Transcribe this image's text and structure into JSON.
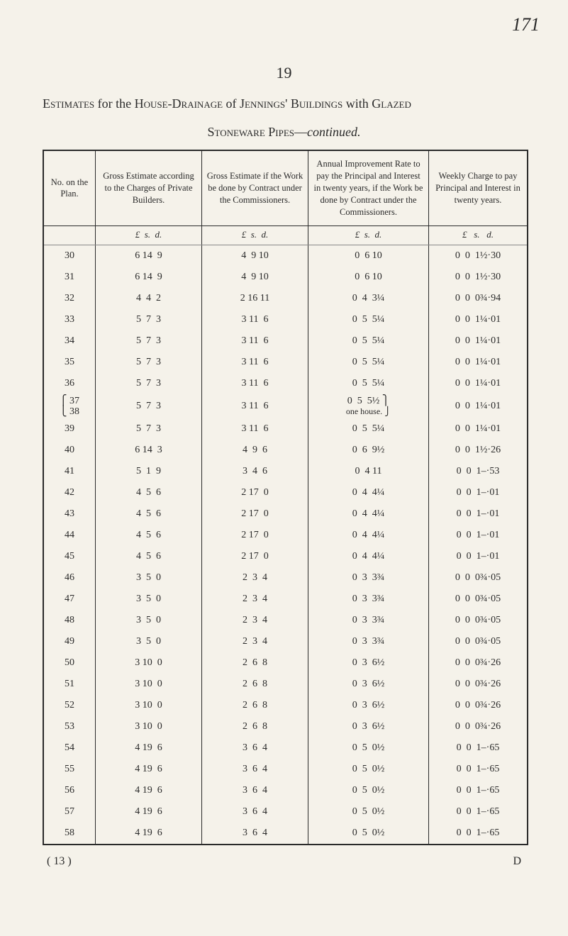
{
  "page": {
    "marginal": "171",
    "number": "19",
    "heading_prefix": "Estimates",
    "heading_mid": " for the ",
    "heading_sc1": "House-Drainage",
    "heading_mid2": " of ",
    "heading_sc2": "Jennings' Buildings",
    "heading_tail": " with ",
    "heading_sc3": "Glazed",
    "subhead_sc": "Stoneware Pipes",
    "subhead_dash": "—",
    "subhead_em": "continued."
  },
  "columns": {
    "c1": "No. on the Plan.",
    "c2": "Gross Estimate according to the Charges of Private Builders.",
    "c3": "Gross Estimate if the Work be done by Contract under the Commissioners.",
    "c4": "Annual Improvement Rate to pay the Principal and Interest in twenty years, if the Work be done by Contract under the Commissioners.",
    "c5": "Weekly Charge to pay Principal and Interest in twenty years."
  },
  "unit_labels": {
    "lsd": "£  s.  d.",
    "lsd2": "£   s.   d."
  },
  "rows": [
    {
      "plan": "30",
      "gross": "6 14  9",
      "contract": "4  9 10",
      "annual": "0  6 10",
      "weekly": "0  0  1½·30"
    },
    {
      "plan": "31",
      "gross": "6 14  9",
      "contract": "4  9 10",
      "annual": "0  6 10",
      "weekly": "0  0  1½·30"
    },
    {
      "plan": "32",
      "gross": "4  4  2",
      "contract": "2 16 11",
      "annual": "0  4  3¼",
      "weekly": "0  0  0¾·94"
    },
    {
      "plan": "33",
      "gross": "5  7  3",
      "contract": "3 11  6",
      "annual": "0  5  5¼",
      "weekly": "0  0  1¼·01"
    },
    {
      "plan": "34",
      "gross": "5  7  3",
      "contract": "3 11  6",
      "annual": "0  5  5¼",
      "weekly": "0  0  1¼·01"
    },
    {
      "plan": "35",
      "gross": "5  7  3",
      "contract": "3 11  6",
      "annual": "0  5  5¼",
      "weekly": "0  0  1¼·01"
    },
    {
      "plan": "36",
      "gross": "5  7  3",
      "contract": "3 11  6",
      "annual": "0  5  5¼",
      "weekly": "0  0  1¼·01"
    },
    {
      "plan": "37/38",
      "plan_a": "37",
      "plan_b": "38",
      "gross": "5  7  3",
      "contract": "3 11  6",
      "annual_line1": "0  5  5½",
      "annual_line2": "one house.",
      "weekly": "0  0  1¼·01",
      "double": true
    },
    {
      "plan": "39",
      "gross": "5  7  3",
      "contract": "3 11  6",
      "annual": "0  5  5¼",
      "weekly": "0  0  1¼·01"
    },
    {
      "plan": "40",
      "gross": "6 14  3",
      "contract": "4  9  6",
      "annual": "0  6  9½",
      "weekly": "0  0  1½·26"
    },
    {
      "plan": "41",
      "gross": "5  1  9",
      "contract": "3  4  6",
      "annual": "0  4 11",
      "weekly": "0  0  1–·53"
    },
    {
      "plan": "42",
      "gross": "4  5  6",
      "contract": "2 17  0",
      "annual": "0  4  4¼",
      "weekly": "0  0  1–·01"
    },
    {
      "plan": "43",
      "gross": "4  5  6",
      "contract": "2 17  0",
      "annual": "0  4  4¼",
      "weekly": "0  0  1–·01"
    },
    {
      "plan": "44",
      "gross": "4  5  6",
      "contract": "2 17  0",
      "annual": "0  4  4¼",
      "weekly": "0  0  1–·01"
    },
    {
      "plan": "45",
      "gross": "4  5  6",
      "contract": "2 17  0",
      "annual": "0  4  4¼",
      "weekly": "0  0  1–·01"
    },
    {
      "plan": "46",
      "gross": "3  5  0",
      "contract": "2  3  4",
      "annual": "0  3  3¾",
      "weekly": "0  0  0¾·05"
    },
    {
      "plan": "47",
      "gross": "3  5  0",
      "contract": "2  3  4",
      "annual": "0  3  3¾",
      "weekly": "0  0  0¾·05"
    },
    {
      "plan": "48",
      "gross": "3  5  0",
      "contract": "2  3  4",
      "annual": "0  3  3¾",
      "weekly": "0  0  0¾·05"
    },
    {
      "plan": "49",
      "gross": "3  5  0",
      "contract": "2  3  4",
      "annual": "0  3  3¾",
      "weekly": "0  0  0¾·05"
    },
    {
      "plan": "50",
      "gross": "3 10  0",
      "contract": "2  6  8",
      "annual": "0  3  6½",
      "weekly": "0  0  0¾·26"
    },
    {
      "plan": "51",
      "gross": "3 10  0",
      "contract": "2  6  8",
      "annual": "0  3  6½",
      "weekly": "0  0  0¾·26"
    },
    {
      "plan": "52",
      "gross": "3 10  0",
      "contract": "2  6  8",
      "annual": "0  3  6½",
      "weekly": "0  0  0¾·26"
    },
    {
      "plan": "53",
      "gross": "3 10  0",
      "contract": "2  6  8",
      "annual": "0  3  6½",
      "weekly": "0  0  0¾·26"
    },
    {
      "plan": "54",
      "gross": "4 19  6",
      "contract": "3  6  4",
      "annual": "0  5  0½",
      "weekly": "0  0  1–·65"
    },
    {
      "plan": "55",
      "gross": "4 19  6",
      "contract": "3  6  4",
      "annual": "0  5  0½",
      "weekly": "0  0  1–·65"
    },
    {
      "plan": "56",
      "gross": "4 19  6",
      "contract": "3  6  4",
      "annual": "0  5  0½",
      "weekly": "0  0  1–·65"
    },
    {
      "plan": "57",
      "gross": "4 19  6",
      "contract": "3  6  4",
      "annual": "0  5  0½",
      "weekly": "0  0  1–·65"
    },
    {
      "plan": "58",
      "gross": "4 19  6",
      "contract": "3  6  4",
      "annual": "0  5  0½",
      "weekly": "0  0  1–·65"
    }
  ],
  "footer": {
    "left": "( 13 )",
    "right": "D"
  }
}
